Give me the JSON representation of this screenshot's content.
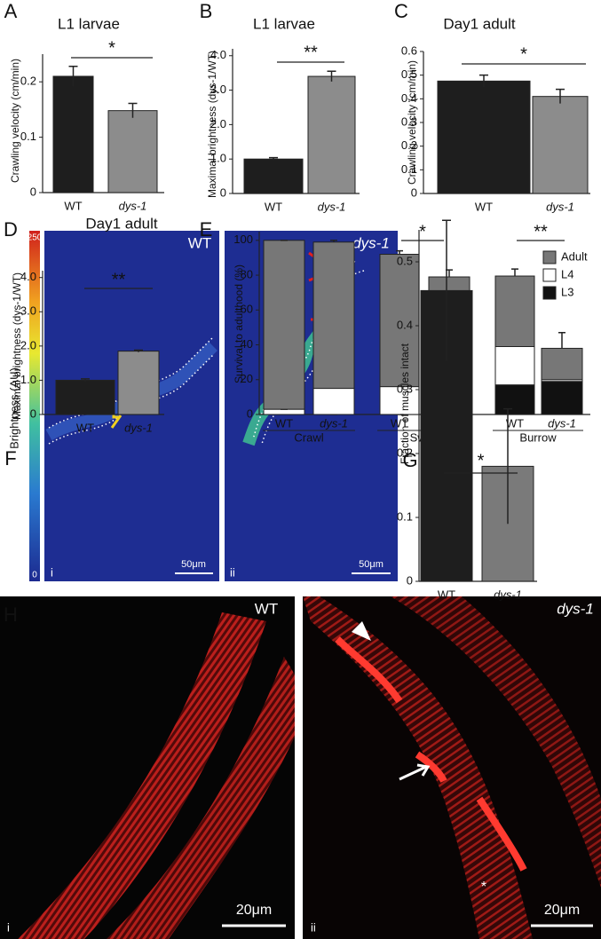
{
  "panel_labels": [
    "A",
    "B",
    "C",
    "D",
    "E",
    "F",
    "G",
    "H"
  ],
  "chart_data": [
    {
      "type": "bar",
      "title": "L1 larvae",
      "y_label": "Crawling velocity (cm/min)",
      "categories": [
        "WT",
        "dys-1"
      ],
      "values": [
        0.21,
        0.148
      ],
      "errors": [
        0.018,
        0.013
      ],
      "colors": [
        "#1e1e1e",
        "#8c8c8c"
      ],
      "ylim": [
        0,
        0.25
      ],
      "yticks": [
        0,
        0.1,
        0.2
      ],
      "annotations": [
        "*"
      ]
    },
    {
      "type": "bar",
      "title": "L1 larvae",
      "y_label": "Maximal brightness (dys-1/WT)",
      "categories": [
        "WT",
        "dys-1"
      ],
      "values": [
        1.0,
        3.4
      ],
      "errors": [
        0.04,
        0.15
      ],
      "colors": [
        "#1e1e1e",
        "#8c8c8c"
      ],
      "ylim": [
        0,
        4.2
      ],
      "yticks": [
        0,
        {
          "value": 1,
          "label": "1.0"
        },
        {
          "value": 2,
          "label": "2.0"
        },
        {
          "value": 3,
          "label": "3.0"
        },
        {
          "value": 4,
          "label": "4.0"
        }
      ],
      "annotations": [
        "**"
      ]
    },
    {
      "type": "bar",
      "title": "Day1 adult",
      "y_label": "Crawling velocity (cm/min)",
      "categories": [
        "WT",
        "dys-1"
      ],
      "values": [
        0.475,
        0.41
      ],
      "errors": [
        0.025,
        0.03
      ],
      "colors": [
        "#1e1e1e",
        "#8c8c8c"
      ],
      "ylim": [
        0,
        0.6
      ],
      "yticks": [
        0,
        0.1,
        0.2,
        0.3,
        0.4,
        0.5,
        0.6
      ],
      "annotations": [
        "*"
      ]
    },
    {
      "type": "bar",
      "title": "Day1 adult",
      "y_label": "Maximal brightness (dys-1/WT)",
      "categories": [
        "WT",
        "dys-1"
      ],
      "values": [
        1.0,
        1.85
      ],
      "errors": [
        0.04,
        0.03
      ],
      "colors": [
        "#1e1e1e",
        "#8c8c8c"
      ],
      "ylim": [
        0,
        4.2
      ],
      "yticks": [
        0,
        {
          "value": 1,
          "label": "1.0"
        },
        {
          "value": 2,
          "label": "2.0"
        },
        {
          "value": 3,
          "label": "3.0"
        },
        {
          "value": 4,
          "label": "4.0"
        }
      ],
      "annotations": [
        "**"
      ]
    },
    {
      "type": "stacked_bar",
      "y_label": "Survival to adulthood (%)",
      "categories": [
        "WT",
        "dys-1",
        "WT",
        "dys-1",
        "WT",
        "dys-1"
      ],
      "groups": [
        "Crawl",
        "Swim",
        "Burrow"
      ],
      "series": [
        {
          "name": "L3",
          "color": "#111111",
          "values": [
            0,
            0,
            0,
            5,
            17,
            19
          ],
          "errors": [
            1.5,
            0,
            0,
            1,
            4,
            5
          ]
        },
        {
          "name": "L4",
          "color": "#ffffff",
          "values": [
            3,
            15,
            16,
            18.5,
            22,
            1
          ],
          "errors": [
            0,
            2,
            2,
            4,
            8,
            6
          ]
        },
        {
          "name": "Adult",
          "color": "#777777",
          "values": [
            97,
            84,
            76,
            55.5,
            40.5,
            18
          ],
          "errors": [
            0,
            1,
            2,
            4,
            4,
            9
          ]
        }
      ],
      "ylim": [
        0,
        105
      ],
      "yticks": [
        0,
        20,
        40,
        60,
        80,
        100
      ],
      "legend": "top-right",
      "annotations": [
        "*",
        "**"
      ]
    },
    {
      "type": "bar",
      "y_label": "Fraction of muscles intact",
      "categories": [
        "WT",
        "dys-1"
      ],
      "values": [
        0.455,
        0.18
      ],
      "errors": [
        0.11,
        0.09
      ],
      "colors": [
        "#1e1e1e",
        "#7a7a7a"
      ],
      "ylim": [
        0,
        0.55
      ],
      "yticks": [
        0,
        0.1,
        0.2,
        0.3,
        0.4,
        0.5
      ],
      "annotations": [
        "*"
      ]
    }
  ],
  "panel_f": {
    "colorbar_label": "Brightness (AU)",
    "colorbar_ticks": [
      250,
      0
    ],
    "images": [
      {
        "label": "WT",
        "scale": "50μm",
        "index": "i"
      },
      {
        "label": "dys-1",
        "scale": "50μm",
        "index": "ii"
      }
    ]
  },
  "panel_h": {
    "images": [
      {
        "label": "WT",
        "scale": "20μm",
        "index": "i"
      },
      {
        "label": "dys-1",
        "scale": "20μm",
        "index": "ii",
        "marker": "*"
      }
    ]
  }
}
